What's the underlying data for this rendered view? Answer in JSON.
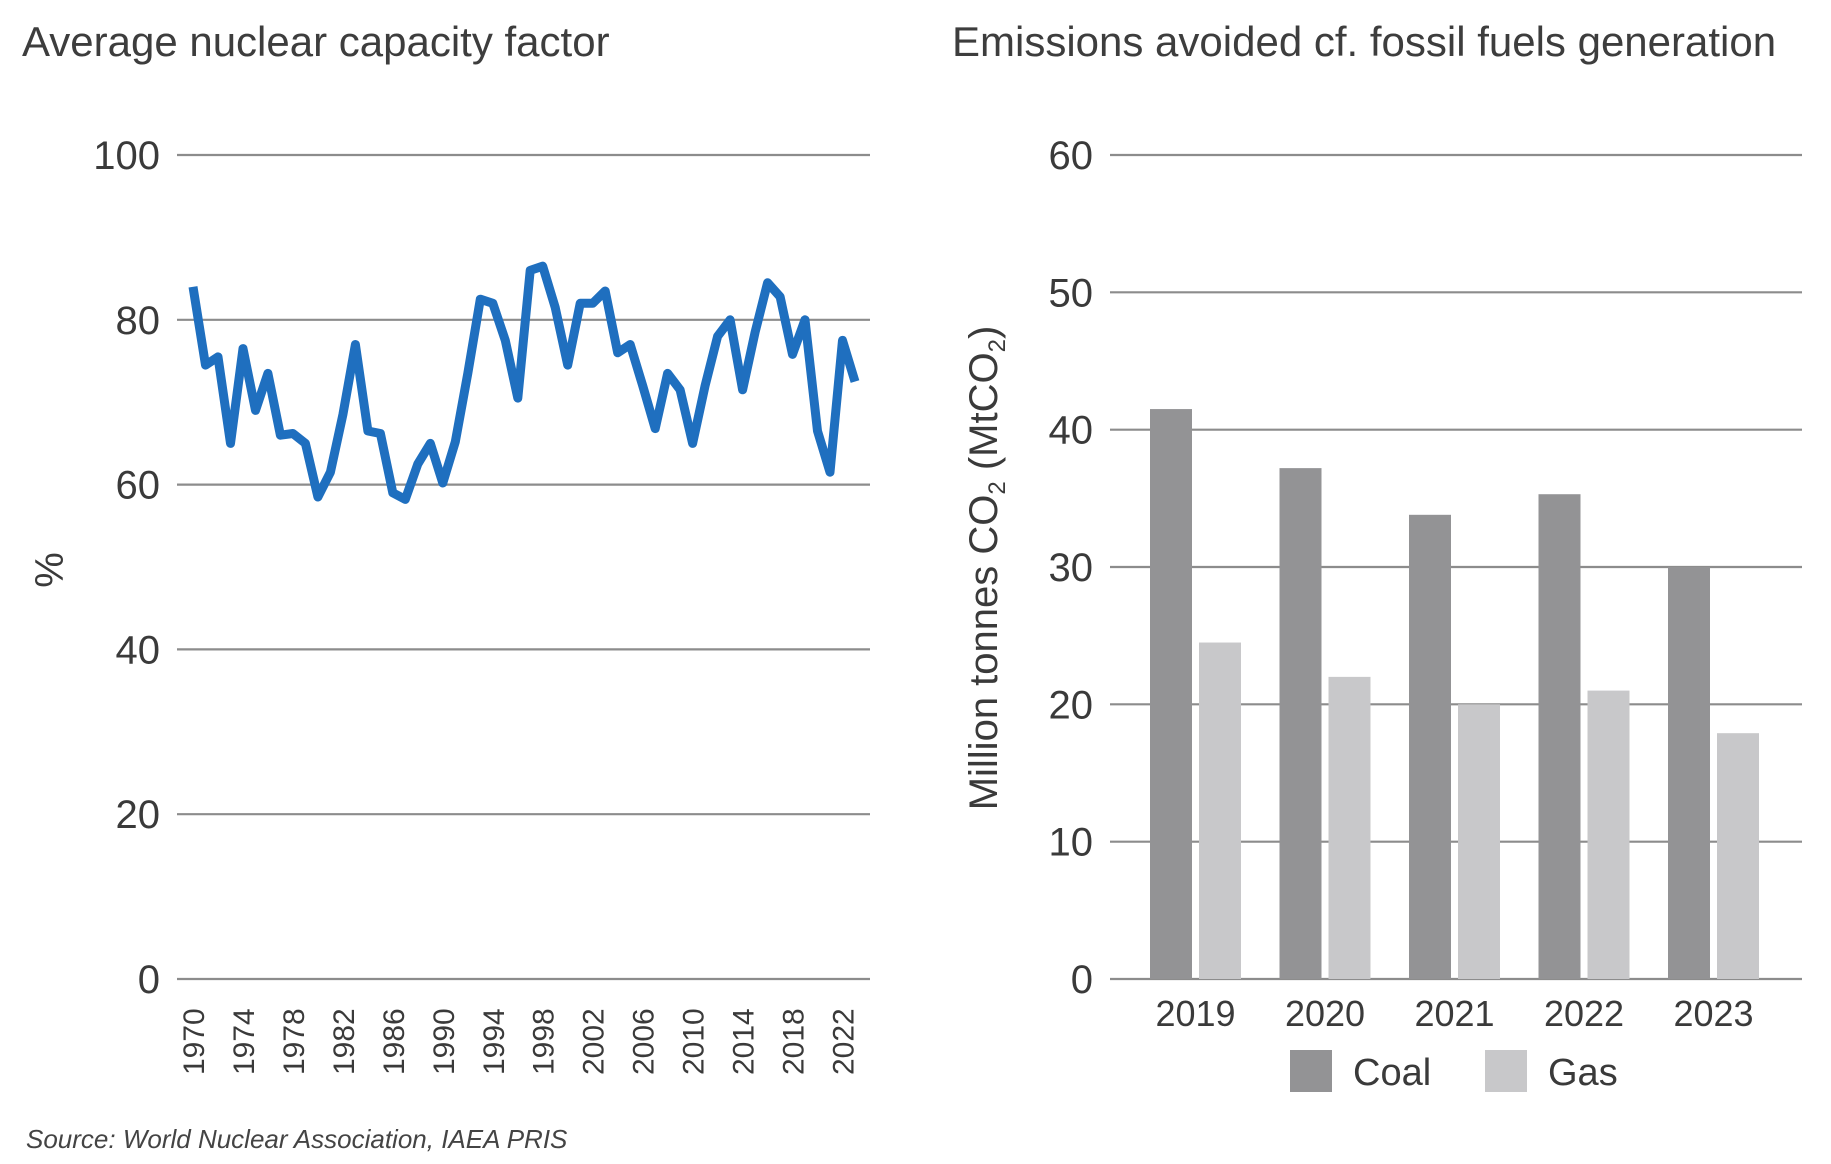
{
  "source": "Source: World Nuclear Association, IAEA PRIS",
  "chart_data": [
    {
      "type": "line",
      "title": "Average nuclear capacity factor",
      "ylabel": "%",
      "xlabel": "",
      "ylim": [
        0,
        100
      ],
      "yticks": [
        "0",
        "20",
        "40",
        "60",
        "80",
        "100"
      ],
      "xticks": [
        "1970",
        "1974",
        "1978",
        "1982",
        "1986",
        "1990",
        "1994",
        "1998",
        "2002",
        "2006",
        "2010",
        "2014",
        "2018",
        "2022"
      ],
      "grid": true,
      "series": [
        {
          "color": "#1f6fbf",
          "x": [
            1970,
            1971,
            1972,
            1973,
            1974,
            1975,
            1976,
            1977,
            1978,
            1979,
            1980,
            1981,
            1982,
            1983,
            1984,
            1985,
            1986,
            1987,
            1988,
            1989,
            1990,
            1991,
            1992,
            1993,
            1994,
            1995,
            1996,
            1997,
            1998,
            1999,
            2000,
            2001,
            2002,
            2003,
            2004,
            2005,
            2006,
            2007,
            2008,
            2009,
            2010,
            2011,
            2012,
            2013,
            2014,
            2015,
            2016,
            2017,
            2018,
            2019,
            2020,
            2021,
            2022,
            2023
          ],
          "values": [
            84,
            74.5,
            75.5,
            65,
            76.5,
            69,
            73.5,
            66,
            66.2,
            65,
            58.5,
            61.5,
            68.5,
            77,
            66.5,
            66.2,
            59,
            58.2,
            62.5,
            65,
            60.2,
            65.2,
            73.5,
            82.5,
            82,
            77.5,
            70.5,
            86,
            86.5,
            81.5,
            74.5,
            82,
            82,
            83.5,
            76,
            77,
            72,
            66.8,
            73.5,
            71.5,
            65,
            72,
            78,
            80,
            71.5,
            78.5,
            84.5,
            82.8,
            75.8,
            80,
            66.5,
            61.5,
            77.5,
            72.5
          ]
        }
      ]
    },
    {
      "type": "bar",
      "title": "Emissions avoided cf. fossil fuels generation",
      "ylabel": "Million tonnes CO2 (MtCO2)",
      "xlabel": "",
      "ylim": [
        0,
        60
      ],
      "yticks": [
        "0",
        "10",
        "20",
        "30",
        "40",
        "50",
        "60"
      ],
      "categories": [
        "2019",
        "2020",
        "2021",
        "2022",
        "2023"
      ],
      "grid": true,
      "legend_position": "bottom",
      "series": [
        {
          "name": "Coal",
          "color": "#939395",
          "values": [
            41.5,
            37.2,
            33.8,
            35.3,
            30.0
          ]
        },
        {
          "name": "Gas",
          "color": "#c8c8ca",
          "values": [
            24.5,
            22.0,
            20.0,
            21.0,
            17.9
          ]
        }
      ]
    }
  ]
}
